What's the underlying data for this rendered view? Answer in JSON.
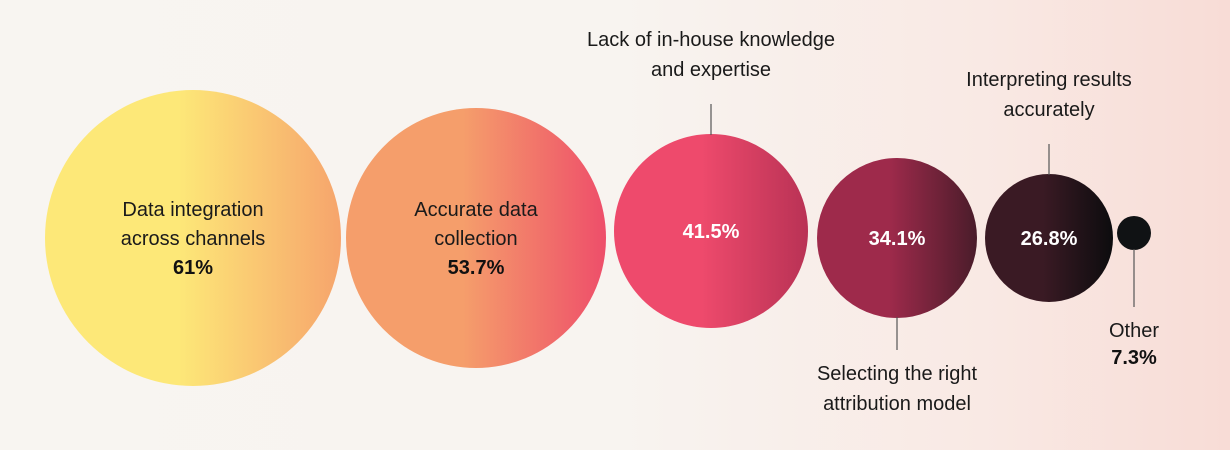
{
  "chart_data": {
    "type": "bubble",
    "title": "",
    "xlabel": "",
    "ylabel": "",
    "categories": [
      "Data integration across channels",
      "Accurate data collection",
      "Lack of in-house knowledge and expertise",
      "Selecting the right attribution model",
      "Interpreting results accurately",
      "Other"
    ],
    "values": [
      61,
      53.7,
      41.5,
      34.1,
      26.8,
      7.3
    ],
    "unit": "%",
    "series": [
      {
        "values": [
          61,
          53.7,
          41.5,
          34.1,
          26.8,
          7.3
        ],
        "colors": [
          [
            "#fde878",
            "#f6a46c"
          ],
          [
            "#f59e6b",
            "#ee4e6a"
          ],
          [
            "#ee4a6c",
            "#b93255"
          ],
          [
            "#9e2a4b",
            "#4a1c2a"
          ],
          [
            "#3a1a24",
            "#0c0c0e"
          ],
          [
            "#101214",
            "#101214"
          ]
        ]
      }
    ],
    "items": [
      {
        "label_lines": [
          "Data integration",
          "across channels"
        ],
        "value_text": "61%",
        "label_position": "inside"
      },
      {
        "label_lines": [
          "Accurate data",
          "collection"
        ],
        "value_text": "53.7%",
        "label_position": "inside"
      },
      {
        "label_lines": [
          "Lack of in-house knowledge",
          "and expertise"
        ],
        "value_text": "41.5%",
        "label_position": "above"
      },
      {
        "label_lines": [
          "Selecting the right",
          "attribution model"
        ],
        "value_text": "34.1%",
        "label_position": "below"
      },
      {
        "label_lines": [
          "Interpreting results",
          "accurately"
        ],
        "value_text": "26.8%",
        "label_position": "above"
      },
      {
        "label_lines": [
          "Other"
        ],
        "value_text": "7.3%",
        "label_position": "below"
      }
    ]
  }
}
